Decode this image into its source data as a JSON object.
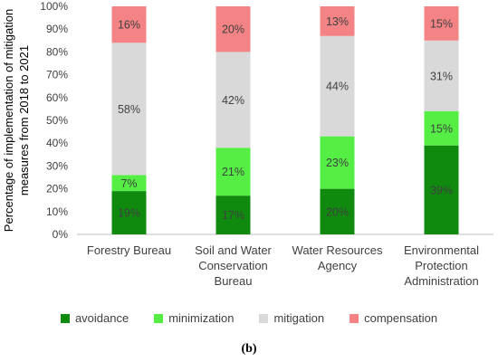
{
  "chart_data": {
    "type": "bar",
    "stacked": true,
    "ylabel": "Percentage of implementation of mitigation measures from 2018 to 2021",
    "ylabel_lines": [
      "Percentage of implementation of mitigation",
      "measures from 2018 to 2021"
    ],
    "ylim": [
      0,
      100
    ],
    "yticks": [
      "0%",
      "10%",
      "20%",
      "30%",
      "40%",
      "50%",
      "60%",
      "70%",
      "80%",
      "90%",
      "100%"
    ],
    "categories": [
      "Forestry Bureau",
      "Soil and Water Conservation Bureau",
      "Water Resources Agency",
      "Environmental Protection Administration"
    ],
    "category_lines": [
      [
        "Forestry Bureau"
      ],
      [
        "Soil and Water",
        "Conservation",
        "Bureau"
      ],
      [
        "Water Resources",
        "Agency"
      ],
      [
        "Environmental",
        "Protection",
        "Administration"
      ]
    ],
    "series": [
      {
        "name": "avoidance",
        "color": "#0f8a0f",
        "values": [
          19,
          17,
          20,
          39
        ],
        "labels": [
          "19%",
          "17%",
          "20%",
          "39%"
        ]
      },
      {
        "name": "minimization",
        "color": "#55ee44",
        "values": [
          7,
          21,
          23,
          15
        ],
        "labels": [
          "7%",
          "21%",
          "23%",
          "15%"
        ]
      },
      {
        "name": "mitigation",
        "color": "#d9d9d9",
        "values": [
          58,
          42,
          44,
          31
        ],
        "labels": [
          "58%",
          "42%",
          "44%",
          "31%"
        ]
      },
      {
        "name": "compensation",
        "color": "#f48385",
        "values": [
          16,
          20,
          13,
          15
        ],
        "labels": [
          "16%",
          "20%",
          "13%",
          "15%"
        ]
      }
    ],
    "legend_position": "bottom",
    "grid": false
  },
  "caption": "(b)"
}
